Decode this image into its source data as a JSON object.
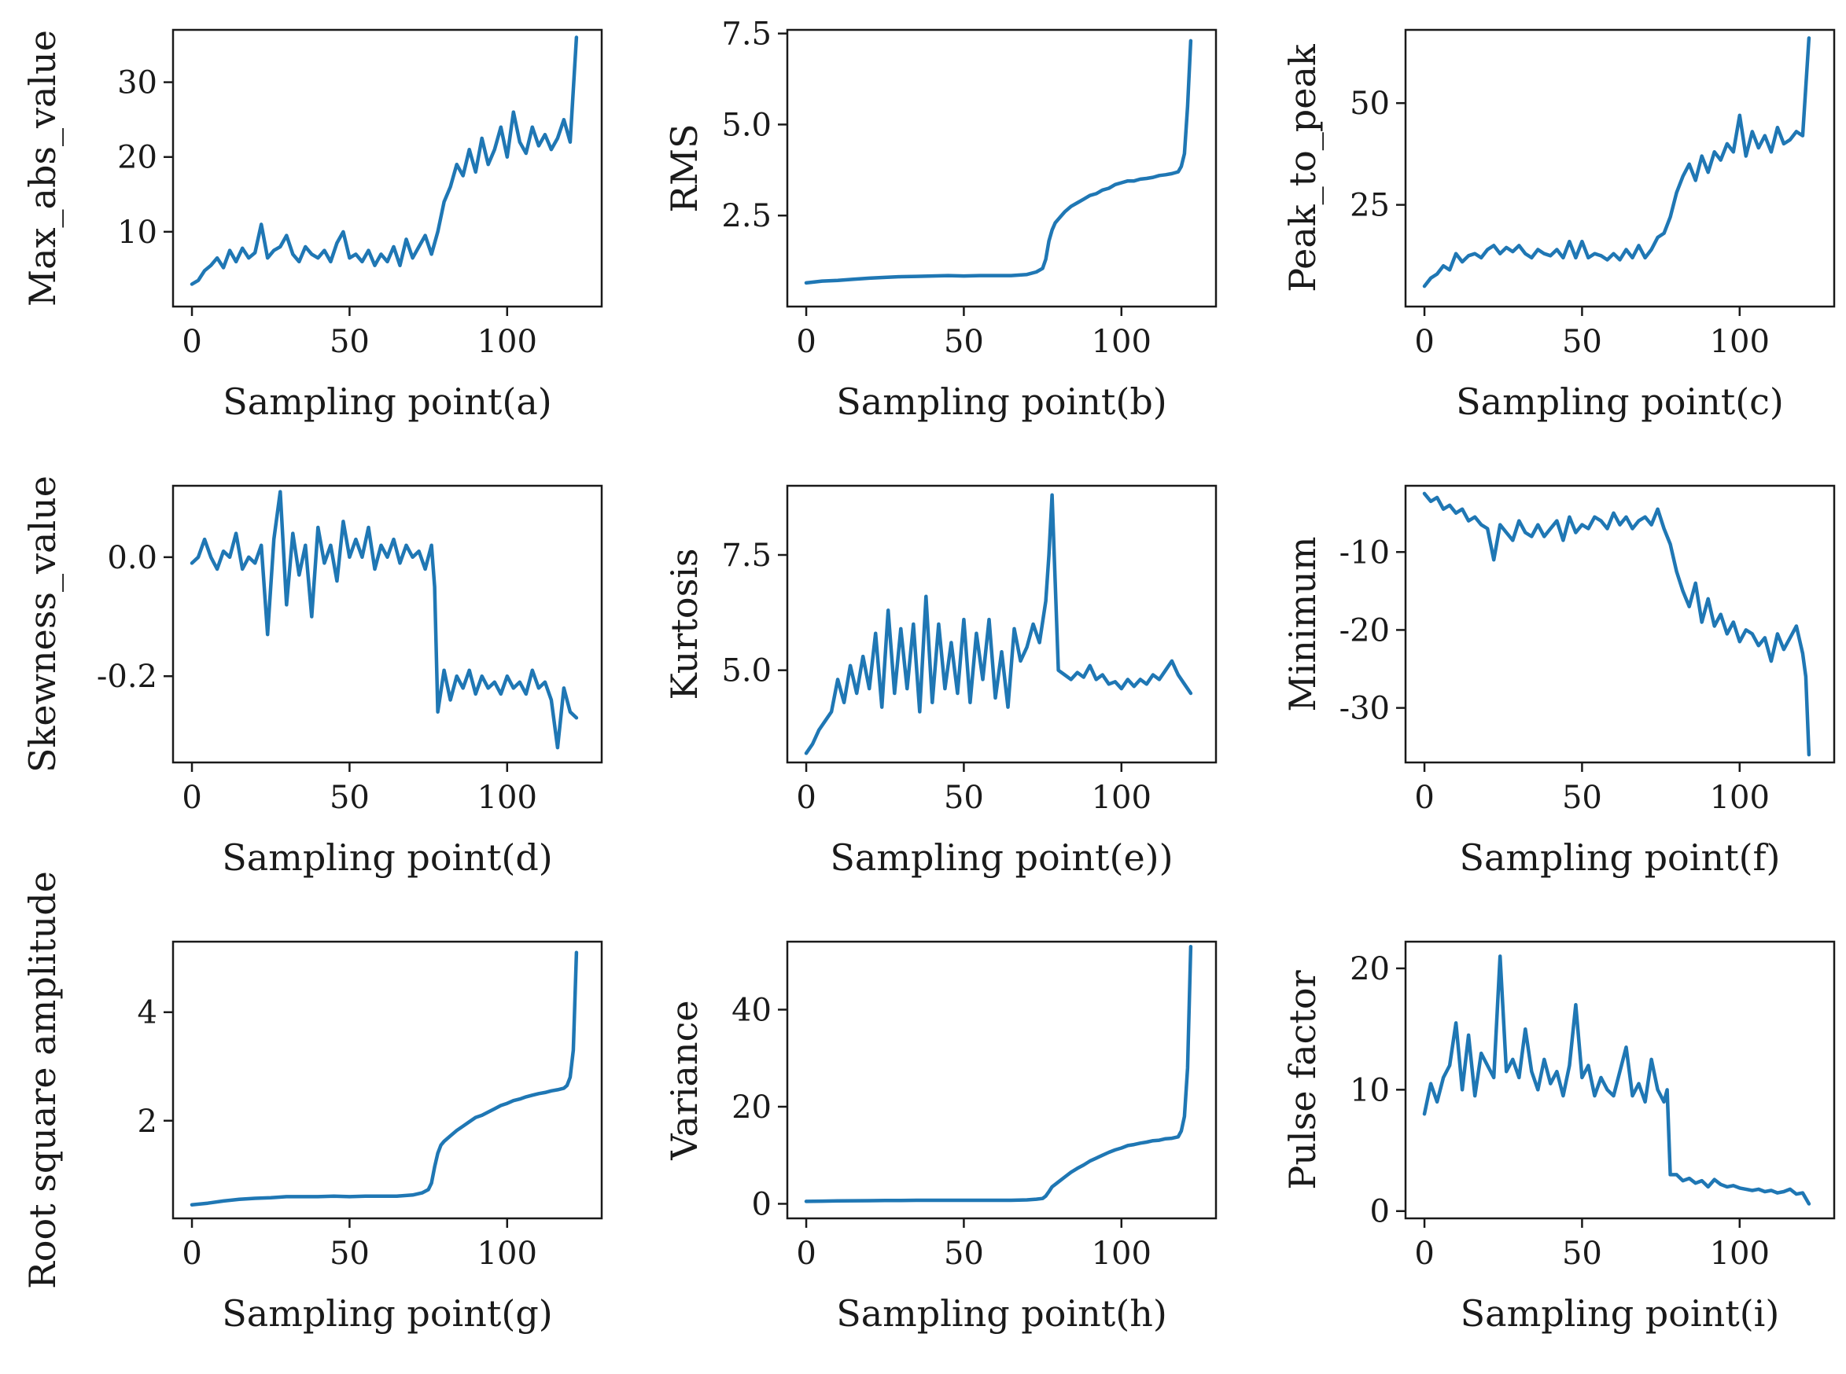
{
  "chart_data": [
    {
      "type": "line",
      "title": "",
      "xlabel": "Sampling point(a)",
      "ylabel": "Max_abs_value",
      "xlim": [
        -6,
        130
      ],
      "ylim": [
        0,
        37
      ],
      "xticks": [
        0,
        50,
        100
      ],
      "yticks": [
        10,
        20,
        30
      ],
      "ytick_labels": [
        "10",
        "20",
        "30"
      ],
      "color": "#1f77b4",
      "x": [
        0,
        2,
        4,
        6,
        8,
        10,
        12,
        14,
        16,
        18,
        20,
        22,
        24,
        26,
        28,
        30,
        32,
        34,
        36,
        38,
        40,
        42,
        44,
        46,
        48,
        50,
        52,
        54,
        56,
        58,
        60,
        62,
        64,
        66,
        68,
        70,
        72,
        74,
        76,
        78,
        80,
        82,
        84,
        86,
        88,
        90,
        92,
        94,
        96,
        98,
        100,
        102,
        104,
        106,
        108,
        110,
        112,
        114,
        116,
        118,
        120,
        122
      ],
      "y": [
        3,
        3.5,
        4.8,
        5.5,
        6.5,
        5.2,
        7.5,
        6.0,
        7.8,
        6.5,
        7.2,
        11,
        6.5,
        7.5,
        8.0,
        9.5,
        7.0,
        6.0,
        8.0,
        7.0,
        6.5,
        7.5,
        6.0,
        8.5,
        10.0,
        6.5,
        7.0,
        6.0,
        7.5,
        5.5,
        7.0,
        6.0,
        8.0,
        5.5,
        9.0,
        6.5,
        8.0,
        9.5,
        7.0,
        10.0,
        14.0,
        16.0,
        19.0,
        17.5,
        21.0,
        18.0,
        22.5,
        19.0,
        21.0,
        24.0,
        20.0,
        26.0,
        22.0,
        20.5,
        24.0,
        21.5,
        23.0,
        21.0,
        22.5,
        25.0,
        22.0,
        36.0
      ]
    },
    {
      "type": "line",
      "title": "",
      "xlabel": "Sampling point(b)",
      "ylabel": "RMS",
      "xlim": [
        -6,
        130
      ],
      "ylim": [
        0,
        7.6
      ],
      "xticks": [
        0,
        50,
        100
      ],
      "yticks": [
        2.5,
        5.0,
        7.5
      ],
      "ytick_labels": [
        "2.5",
        "5.0",
        "7.5"
      ],
      "color": "#1f77b4",
      "x": [
        0,
        5,
        10,
        15,
        20,
        25,
        30,
        35,
        40,
        45,
        50,
        55,
        60,
        65,
        70,
        73,
        75,
        76,
        77,
        78,
        79,
        80,
        82,
        84,
        86,
        88,
        90,
        92,
        94,
        96,
        98,
        100,
        102,
        104,
        106,
        108,
        110,
        112,
        114,
        116,
        118,
        119,
        120,
        121,
        122
      ],
      "y": [
        0.65,
        0.7,
        0.72,
        0.75,
        0.78,
        0.8,
        0.82,
        0.83,
        0.84,
        0.85,
        0.84,
        0.85,
        0.85,
        0.85,
        0.88,
        0.95,
        1.05,
        1.3,
        1.8,
        2.1,
        2.3,
        2.4,
        2.6,
        2.75,
        2.85,
        2.95,
        3.05,
        3.1,
        3.2,
        3.25,
        3.35,
        3.4,
        3.45,
        3.45,
        3.5,
        3.52,
        3.55,
        3.6,
        3.62,
        3.65,
        3.7,
        3.85,
        4.2,
        5.5,
        7.3
      ]
    },
    {
      "type": "line",
      "title": "",
      "xlabel": "Sampling point(c)",
      "ylabel": "Peak_to_peak",
      "xlim": [
        -6,
        130
      ],
      "ylim": [
        0,
        68
      ],
      "xticks": [
        0,
        50,
        100
      ],
      "yticks": [
        25,
        50
      ],
      "ytick_labels": [
        "25",
        "50"
      ],
      "color": "#1f77b4",
      "x": [
        0,
        2,
        4,
        6,
        8,
        10,
        12,
        14,
        16,
        18,
        20,
        22,
        24,
        26,
        28,
        30,
        32,
        34,
        36,
        38,
        40,
        42,
        44,
        46,
        48,
        50,
        52,
        54,
        56,
        58,
        60,
        62,
        64,
        66,
        68,
        70,
        72,
        74,
        76,
        78,
        80,
        82,
        84,
        86,
        88,
        90,
        92,
        94,
        96,
        98,
        100,
        102,
        104,
        106,
        108,
        110,
        112,
        114,
        116,
        118,
        120,
        122
      ],
      "y": [
        5,
        7,
        8,
        10,
        9,
        13,
        11,
        12.5,
        13,
        12,
        14,
        15,
        13,
        14.5,
        13.5,
        15,
        13,
        12,
        14,
        13,
        12.5,
        14,
        12,
        16,
        12,
        16,
        12,
        13,
        12.5,
        11.5,
        13,
        11.5,
        14,
        12,
        15,
        12,
        14,
        17,
        18,
        22,
        28,
        32,
        35,
        31,
        37,
        33,
        38,
        36,
        40,
        38,
        47,
        37,
        43,
        39,
        42,
        38,
        44,
        40,
        41,
        43,
        42,
        66
      ]
    },
    {
      "type": "line",
      "title": "",
      "xlabel": "Sampling point(d)",
      "ylabel": "Skewness_value",
      "xlim": [
        -6,
        130
      ],
      "ylim": [
        -0.345,
        0.12
      ],
      "xticks": [
        0,
        50,
        100
      ],
      "yticks": [
        -0.2,
        0.0
      ],
      "ytick_labels": [
        "-0.2",
        "0.0"
      ],
      "color": "#1f77b4",
      "x": [
        0,
        2,
        4,
        6,
        8,
        10,
        12,
        14,
        16,
        18,
        20,
        22,
        24,
        26,
        28,
        30,
        32,
        34,
        36,
        38,
        40,
        42,
        44,
        46,
        48,
        50,
        52,
        54,
        56,
        58,
        60,
        62,
        64,
        66,
        68,
        70,
        72,
        74,
        76,
        77,
        78,
        80,
        82,
        84,
        86,
        88,
        90,
        92,
        94,
        96,
        98,
        100,
        102,
        104,
        106,
        108,
        110,
        112,
        114,
        116,
        118,
        120,
        122
      ],
      "y": [
        -0.01,
        0.0,
        0.03,
        0.0,
        -0.02,
        0.01,
        0.0,
        0.04,
        -0.02,
        0.0,
        -0.01,
        0.02,
        -0.13,
        0.03,
        0.11,
        -0.08,
        0.04,
        -0.03,
        0.02,
        -0.1,
        0.05,
        -0.01,
        0.02,
        -0.04,
        0.06,
        0.0,
        0.03,
        0.0,
        0.05,
        -0.02,
        0.02,
        0.0,
        0.03,
        -0.01,
        0.02,
        0.0,
        0.01,
        -0.02,
        0.02,
        -0.05,
        -0.26,
        -0.19,
        -0.24,
        -0.2,
        -0.22,
        -0.19,
        -0.23,
        -0.2,
        -0.22,
        -0.21,
        -0.23,
        -0.2,
        -0.22,
        -0.21,
        -0.23,
        -0.19,
        -0.22,
        -0.21,
        -0.24,
        -0.32,
        -0.22,
        -0.26,
        -0.27
      ]
    },
    {
      "type": "line",
      "title": "",
      "xlabel": "Sampling point(e))",
      "ylabel": "Kurtosis",
      "xlim": [
        -6,
        130
      ],
      "ylim": [
        3.0,
        9.0
      ],
      "xticks": [
        0,
        50,
        100
      ],
      "yticks": [
        5.0,
        7.5
      ],
      "ytick_labels": [
        "5.0",
        "7.5"
      ],
      "color": "#1f77b4",
      "x": [
        0,
        2,
        4,
        6,
        8,
        10,
        12,
        14,
        16,
        18,
        20,
        22,
        24,
        26,
        28,
        30,
        32,
        34,
        36,
        38,
        40,
        42,
        44,
        46,
        48,
        50,
        52,
        54,
        56,
        58,
        60,
        62,
        64,
        66,
        68,
        70,
        72,
        74,
        76,
        77,
        78,
        80,
        82,
        84,
        86,
        88,
        90,
        92,
        94,
        96,
        98,
        100,
        102,
        104,
        106,
        108,
        110,
        112,
        114,
        116,
        118,
        120,
        122
      ],
      "y": [
        3.2,
        3.4,
        3.7,
        3.9,
        4.1,
        4.8,
        4.3,
        5.1,
        4.5,
        5.3,
        4.6,
        5.8,
        4.2,
        6.3,
        4.5,
        5.9,
        4.6,
        6.0,
        4.1,
        6.6,
        4.3,
        6.0,
        4.6,
        5.6,
        4.5,
        6.1,
        4.3,
        5.8,
        4.8,
        6.1,
        4.4,
        5.4,
        4.2,
        5.9,
        5.2,
        5.5,
        6.0,
        5.6,
        6.5,
        7.5,
        8.8,
        5.0,
        4.9,
        4.8,
        4.95,
        4.85,
        5.1,
        4.8,
        4.9,
        4.7,
        4.75,
        4.6,
        4.8,
        4.65,
        4.8,
        4.7,
        4.9,
        4.8,
        5.0,
        5.2,
        4.9,
        4.7,
        4.5
      ]
    },
    {
      "type": "line",
      "title": "",
      "xlabel": "Sampling point(f)",
      "ylabel": "Minimum",
      "xlim": [
        -6,
        130
      ],
      "ylim": [
        -37,
        -1.5
      ],
      "xticks": [
        0,
        50,
        100
      ],
      "yticks": [
        -30,
        -20,
        -10
      ],
      "ytick_labels": [
        "-30",
        "-20",
        "-10"
      ],
      "color": "#1f77b4",
      "x": [
        0,
        2,
        4,
        6,
        8,
        10,
        12,
        14,
        16,
        18,
        20,
        22,
        24,
        26,
        28,
        30,
        32,
        34,
        36,
        38,
        40,
        42,
        44,
        46,
        48,
        50,
        52,
        54,
        56,
        58,
        60,
        62,
        64,
        66,
        68,
        70,
        72,
        74,
        76,
        78,
        80,
        82,
        84,
        86,
        88,
        90,
        92,
        94,
        96,
        98,
        100,
        102,
        104,
        106,
        108,
        110,
        112,
        114,
        116,
        118,
        120,
        121,
        122
      ],
      "y": [
        -2.5,
        -3.5,
        -3.0,
        -4.5,
        -4.0,
        -5.0,
        -4.5,
        -6.0,
        -5.5,
        -6.5,
        -7.0,
        -11.0,
        -6.5,
        -7.5,
        -8.5,
        -6.0,
        -7.5,
        -8.0,
        -6.5,
        -8.0,
        -7.0,
        -6.0,
        -8.5,
        -5.5,
        -7.5,
        -6.5,
        -7.0,
        -5.5,
        -6.0,
        -7.0,
        -5.0,
        -6.5,
        -5.5,
        -7.0,
        -6.0,
        -5.5,
        -6.5,
        -4.5,
        -7.0,
        -9.0,
        -12.5,
        -15.0,
        -17.0,
        -14.0,
        -19.0,
        -16.0,
        -19.5,
        -18.0,
        -20.5,
        -19.0,
        -21.5,
        -20.0,
        -20.5,
        -22.0,
        -21.0,
        -24.0,
        -20.5,
        -22.5,
        -21.0,
        -19.5,
        -23.0,
        -26.0,
        -36.0
      ]
    },
    {
      "type": "line",
      "title": "",
      "xlabel": "Sampling point(g)",
      "ylabel": "Root square amplitude",
      "xlim": [
        -6,
        130
      ],
      "ylim": [
        0.2,
        5.3
      ],
      "xticks": [
        0,
        50,
        100
      ],
      "yticks": [
        2,
        4
      ],
      "ytick_labels": [
        "2",
        "4"
      ],
      "color": "#1f77b4",
      "x": [
        0,
        5,
        10,
        15,
        20,
        25,
        30,
        35,
        40,
        45,
        50,
        55,
        60,
        65,
        70,
        73,
        75,
        76,
        77,
        78,
        79,
        80,
        82,
        84,
        86,
        88,
        90,
        92,
        94,
        96,
        98,
        100,
        102,
        104,
        106,
        108,
        110,
        112,
        114,
        116,
        118,
        119,
        120,
        121,
        122
      ],
      "y": [
        0.45,
        0.48,
        0.52,
        0.55,
        0.57,
        0.58,
        0.6,
        0.6,
        0.6,
        0.61,
        0.6,
        0.61,
        0.61,
        0.61,
        0.63,
        0.67,
        0.73,
        0.85,
        1.15,
        1.4,
        1.55,
        1.62,
        1.72,
        1.82,
        1.9,
        1.98,
        2.06,
        2.1,
        2.16,
        2.22,
        2.28,
        2.32,
        2.37,
        2.4,
        2.44,
        2.47,
        2.5,
        2.52,
        2.55,
        2.57,
        2.6,
        2.65,
        2.8,
        3.3,
        5.1
      ]
    },
    {
      "type": "line",
      "title": "",
      "xlabel": "Sampling point(h)",
      "ylabel": "Variance",
      "xlim": [
        -6,
        130
      ],
      "ylim": [
        -3,
        54
      ],
      "xticks": [
        0,
        50,
        100
      ],
      "yticks": [
        0,
        20,
        40
      ],
      "ytick_labels": [
        "0",
        "20",
        "40"
      ],
      "color": "#1f77b4",
      "x": [
        0,
        5,
        10,
        15,
        20,
        25,
        30,
        35,
        40,
        45,
        50,
        55,
        60,
        65,
        70,
        73,
        75,
        76,
        77,
        78,
        79,
        80,
        82,
        84,
        86,
        88,
        90,
        92,
        94,
        96,
        98,
        100,
        102,
        104,
        106,
        108,
        110,
        112,
        114,
        116,
        118,
        119,
        120,
        121,
        122
      ],
      "y": [
        0.5,
        0.55,
        0.6,
        0.62,
        0.65,
        0.68,
        0.7,
        0.72,
        0.72,
        0.73,
        0.72,
        0.73,
        0.73,
        0.73,
        0.8,
        0.95,
        1.1,
        1.6,
        2.5,
        3.5,
        4.0,
        4.5,
        5.5,
        6.5,
        7.3,
        8.0,
        8.8,
        9.4,
        10.0,
        10.6,
        11.1,
        11.5,
        12.0,
        12.2,
        12.5,
        12.7,
        13.0,
        13.1,
        13.4,
        13.5,
        13.8,
        15.0,
        18.0,
        28.0,
        53.0
      ]
    },
    {
      "type": "line",
      "title": "",
      "xlabel": "Sampling point(i)",
      "ylabel": "Pulse factor",
      "xlim": [
        -6,
        130
      ],
      "ylim": [
        -0.6,
        22.2
      ],
      "xticks": [
        0,
        50,
        100
      ],
      "yticks": [
        0,
        10,
        20
      ],
      "ytick_labels": [
        "0",
        "10",
        "20"
      ],
      "color": "#1f77b4",
      "x": [
        0,
        2,
        4,
        6,
        8,
        10,
        12,
        14,
        16,
        18,
        20,
        22,
        24,
        26,
        28,
        30,
        32,
        34,
        36,
        38,
        40,
        42,
        44,
        46,
        48,
        50,
        52,
        54,
        56,
        58,
        60,
        62,
        64,
        66,
        68,
        70,
        72,
        74,
        76,
        77,
        78,
        80,
        82,
        84,
        86,
        88,
        90,
        92,
        94,
        96,
        98,
        100,
        102,
        104,
        106,
        108,
        110,
        112,
        114,
        116,
        118,
        120,
        122
      ],
      "y": [
        8.0,
        10.5,
        9.0,
        11.0,
        12.0,
        15.5,
        10.0,
        14.5,
        9.5,
        13.0,
        12.0,
        11.0,
        21.0,
        11.5,
        12.5,
        11.0,
        15.0,
        11.5,
        10.0,
        12.5,
        10.5,
        11.5,
        9.5,
        12.0,
        17.0,
        11.0,
        12.0,
        9.5,
        11.0,
        10.0,
        9.5,
        11.5,
        13.5,
        9.5,
        10.5,
        9.0,
        12.5,
        10.0,
        9.0,
        10.0,
        3.0,
        3.0,
        2.5,
        2.7,
        2.3,
        2.5,
        2.0,
        2.6,
        2.2,
        2.0,
        2.1,
        1.9,
        1.8,
        1.7,
        1.8,
        1.6,
        1.7,
        1.5,
        1.6,
        1.8,
        1.4,
        1.5,
        0.6
      ]
    }
  ]
}
